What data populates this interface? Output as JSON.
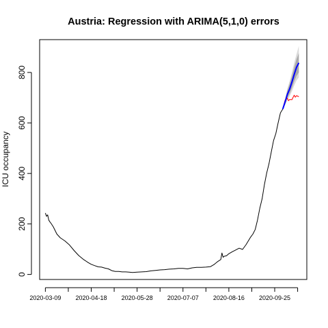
{
  "chart_data": {
    "type": "line",
    "title": "Austria: Regression with ARIMA(5,1,0) errors",
    "xlabel": "",
    "ylabel": "ICU occupancy",
    "xlim": [
      "2020-03-04",
      "2020-10-23"
    ],
    "ylim": [
      -20,
      930
    ],
    "yticks": [
      0,
      200,
      400,
      600,
      800
    ],
    "xticks": [
      "2020-03-09",
      "2020-04-18",
      "2020-05-28",
      "2020-07-07",
      "2020-08-16",
      "2020-09-25"
    ],
    "grid": false,
    "legend": "none",
    "colors": {
      "observed": "#000000",
      "forecast": "#0000ff",
      "test_actual": "#ff0000",
      "interval_95": "#dbdbdb",
      "interval_80": "#aaaaaa"
    },
    "series": [
      {
        "key": "observed",
        "x": [
          "2020-03-09",
          "2020-03-10",
          "2020-03-11",
          "2020-03-12",
          "2020-03-13",
          "2020-03-14",
          "2020-03-16",
          "2020-03-19",
          "2020-03-22",
          "2020-03-26",
          "2020-03-30",
          "2020-04-03",
          "2020-04-07",
          "2020-04-11",
          "2020-04-15",
          "2020-04-18",
          "2020-04-21",
          "2020-04-24",
          "2020-04-27",
          "2020-04-30",
          "2020-05-03",
          "2020-05-06",
          "2020-05-09",
          "2020-05-12",
          "2020-05-15",
          "2020-05-18",
          "2020-05-21",
          "2020-05-24",
          "2020-05-28",
          "2020-06-01",
          "2020-06-05",
          "2020-06-09",
          "2020-06-13",
          "2020-06-17",
          "2020-06-21",
          "2020-06-25",
          "2020-06-29",
          "2020-07-03",
          "2020-07-07",
          "2020-07-11",
          "2020-07-15",
          "2020-07-19",
          "2020-07-23",
          "2020-07-27",
          "2020-07-31",
          "2020-08-03",
          "2020-08-06",
          "2020-08-09",
          "2020-08-10",
          "2020-08-11",
          "2020-08-12",
          "2020-08-14",
          "2020-08-16",
          "2020-08-19",
          "2020-08-22",
          "2020-08-25",
          "2020-08-28",
          "2020-08-31",
          "2020-09-02",
          "2020-09-04",
          "2020-09-06",
          "2020-09-08",
          "2020-09-10",
          "2020-09-12",
          "2020-09-14",
          "2020-09-16",
          "2020-09-18",
          "2020-09-20",
          "2020-09-22",
          "2020-09-24",
          "2020-09-26",
          "2020-09-28",
          "2020-09-30",
          "2020-10-02"
        ],
        "values": [
          243,
          230,
          236,
          215,
          208,
          202,
          188,
          160,
          145,
          133,
          117,
          95,
          75,
          60,
          48,
          40,
          35,
          30,
          29,
          25,
          22,
          15,
          12,
          12,
          10,
          10,
          9,
          8,
          9,
          10,
          11,
          14,
          16,
          18,
          19,
          21,
          22,
          24,
          24,
          22,
          26,
          28,
          28,
          29,
          31,
          39,
          50,
          59,
          85,
          68,
          72,
          74,
          82,
          90,
          97,
          104,
          99,
          118,
          133,
          148,
          160,
          178,
          215,
          262,
          300,
          355,
          402,
          438,
          485,
          530,
          558,
          600,
          640,
          655
        ]
      },
      {
        "key": "forecast",
        "x": [
          "2020-10-02",
          "2020-10-04",
          "2020-10-06",
          "2020-10-08",
          "2020-10-10",
          "2020-10-12",
          "2020-10-14",
          "2020-10-16"
        ],
        "values": [
          655,
          682,
          713,
          734,
          762,
          792,
          820,
          838
        ],
        "lower95": [
          653,
          670,
          690,
          705,
          725,
          748,
          768,
          780
        ],
        "upper95": [
          657,
          695,
          736,
          765,
          800,
          838,
          872,
          905
        ],
        "lower80": [
          654,
          674,
          698,
          715,
          738,
          764,
          786,
          800
        ],
        "upper80": [
          656,
          690,
          728,
          754,
          786,
          820,
          852,
          876
        ]
      },
      {
        "key": "test_actual",
        "x": [
          "2020-10-02",
          "2020-10-04",
          "2020-10-06",
          "2020-10-07",
          "2020-10-08",
          "2020-10-10",
          "2020-10-12",
          "2020-10-13",
          "2020-10-14",
          "2020-10-16"
        ],
        "values": [
          655,
          690,
          698,
          688,
          693,
          692,
          710,
          702,
          708,
          704
        ]
      }
    ]
  }
}
